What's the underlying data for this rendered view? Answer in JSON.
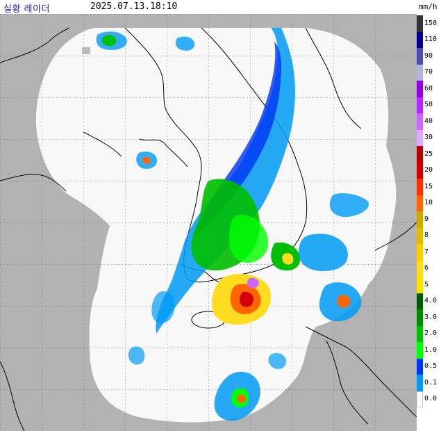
{
  "header": {
    "title": "실황 레이더",
    "timestamp": "2025.07.13.18:10"
  },
  "map": {
    "colors": {
      "outside_radar": "#b2b2b2",
      "radar_coverage": "#f8f8f8",
      "coast_line": "#000000",
      "grid_line": "#333333"
    }
  },
  "legend": {
    "unit": "mm/h",
    "items": [
      {
        "label": "150",
        "color": "#333333"
      },
      {
        "label": "110",
        "color": "#000390"
      },
      {
        "label": "90",
        "color": "#4c4eb1"
      },
      {
        "label": "70",
        "color": "#b3b4de"
      },
      {
        "label": "60",
        "color": "#9300e4"
      },
      {
        "label": "50",
        "color": "#b329ff"
      },
      {
        "label": "40",
        "color": "#c969ff"
      },
      {
        "label": "30",
        "color": "#e0a9ff"
      },
      {
        "label": "25",
        "color": "#b40000"
      },
      {
        "label": "20",
        "color": "#d20000"
      },
      {
        "label": "15",
        "color": "#ff3200"
      },
      {
        "label": "10",
        "color": "#ff6600"
      },
      {
        "label": "9",
        "color": "#ccaa00"
      },
      {
        "label": "8",
        "color": "#e0b900"
      },
      {
        "label": "7",
        "color": "#f9cd00"
      },
      {
        "label": "6",
        "color": "#ffdc1f"
      },
      {
        "label": "5",
        "color": "#ffe100"
      },
      {
        "label": "4.0",
        "color": "#005a00"
      },
      {
        "label": "3.0",
        "color": "#008c00"
      },
      {
        "label": "2.0",
        "color": "#00be00"
      },
      {
        "label": "1.0",
        "color": "#00ff00"
      },
      {
        "label": "0.5",
        "color": "#0033f5"
      },
      {
        "label": "0.1",
        "color": "#009bf5"
      },
      {
        "label": "0.0",
        "color": "#ffffff"
      }
    ]
  }
}
